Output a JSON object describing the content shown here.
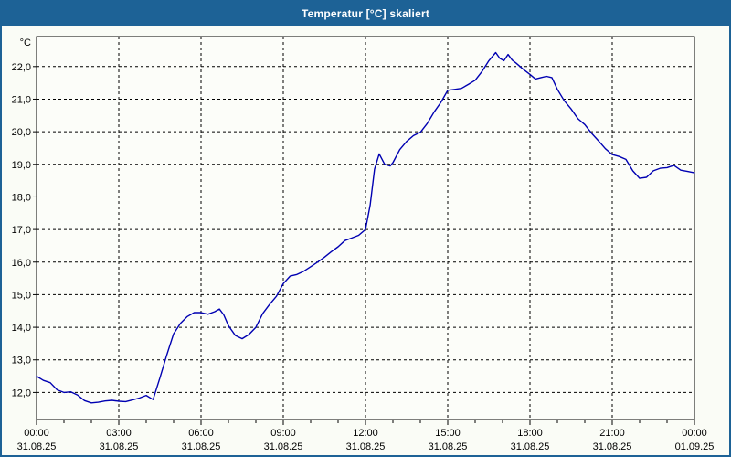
{
  "window": {
    "title": "Temperatur [°C] skaliert"
  },
  "colors": {
    "titlebar_blue": "#1d6296",
    "page_background": "#fafcf6",
    "plot_background": "#fcfdf9",
    "grid_black": "#000000",
    "series_blue": "#0000b2"
  },
  "chart_data": {
    "type": "line",
    "title": "Temperatur [°C] skaliert",
    "y_unit_label": "°C",
    "x_range_hours": [
      0,
      24
    ],
    "y_range": [
      11.17,
      22.92
    ],
    "grid": "dotted",
    "legend_position": "none",
    "y_ticks": [
      {
        "value": 12,
        "label": "12,0"
      },
      {
        "value": 13,
        "label": "13,0"
      },
      {
        "value": 14,
        "label": "14,0"
      },
      {
        "value": 15,
        "label": "15,0"
      },
      {
        "value": 16,
        "label": "16,0"
      },
      {
        "value": 17,
        "label": "17,0"
      },
      {
        "value": 18,
        "label": "18,0"
      },
      {
        "value": 19,
        "label": "19,0"
      },
      {
        "value": 20,
        "label": "20,0"
      },
      {
        "value": 21,
        "label": "21,0"
      },
      {
        "value": 22,
        "label": "22,0"
      }
    ],
    "x_major_ticks": [
      {
        "hour": 0,
        "time": "00:00",
        "date": "31.08.25"
      },
      {
        "hour": 3,
        "time": "03:00",
        "date": "31.08.25"
      },
      {
        "hour": 6,
        "time": "06:00",
        "date": "31.08.25"
      },
      {
        "hour": 9,
        "time": "09:00",
        "date": "31.08.25"
      },
      {
        "hour": 12,
        "time": "12:00",
        "date": "31.08.25"
      },
      {
        "hour": 15,
        "time": "15:00",
        "date": "31.08.25"
      },
      {
        "hour": 18,
        "time": "18:00",
        "date": "31.08.25"
      },
      {
        "hour": 21,
        "time": "21:00",
        "date": "31.08.25"
      },
      {
        "hour": 24,
        "time": "00:00",
        "date": "01.09.25"
      }
    ],
    "x_minor_tick_every_hours": 1,
    "series": [
      {
        "name": "Temperatur",
        "color": "#0000b2",
        "x_hours": [
          0,
          0.25,
          0.5,
          0.75,
          1,
          1.25,
          1.5,
          1.75,
          2,
          2.25,
          2.5,
          2.75,
          3,
          3.25,
          3.5,
          3.75,
          4,
          4.25,
          4.5,
          4.75,
          5,
          5.25,
          5.5,
          5.75,
          6,
          6.25,
          6.5,
          6.67,
          6.83,
          7,
          7.25,
          7.5,
          7.75,
          8,
          8.25,
          8.5,
          8.75,
          9,
          9.25,
          9.5,
          9.75,
          10,
          10.25,
          10.5,
          10.75,
          11,
          11.25,
          11.5,
          11.75,
          12,
          12.17,
          12.33,
          12.5,
          12.7,
          12.9,
          13,
          13.25,
          13.5,
          13.75,
          14,
          14.25,
          14.5,
          14.75,
          15,
          15.25,
          15.5,
          15.75,
          16,
          16.25,
          16.5,
          16.75,
          16.9,
          17.05,
          17.2,
          17.35,
          17.5,
          17.75,
          18,
          18.2,
          18.4,
          18.6,
          18.8,
          19,
          19.25,
          19.5,
          19.75,
          20,
          20.25,
          20.5,
          20.75,
          21,
          21.25,
          21.5,
          21.75,
          22,
          22.25,
          22.5,
          22.75,
          23,
          23.25,
          23.5,
          23.75,
          24
        ],
        "values": [
          12.5,
          12.37,
          12.3,
          12.08,
          12.0,
          12.02,
          11.92,
          11.75,
          11.68,
          11.7,
          11.74,
          11.76,
          11.73,
          11.72,
          11.77,
          11.83,
          11.91,
          11.78,
          12.45,
          13.15,
          13.8,
          14.12,
          14.33,
          14.45,
          14.45,
          14.4,
          14.48,
          14.56,
          14.38,
          14.05,
          13.75,
          13.65,
          13.78,
          14.0,
          14.42,
          14.7,
          14.95,
          15.34,
          15.57,
          15.62,
          15.72,
          15.86,
          16.0,
          16.15,
          16.32,
          16.47,
          16.66,
          16.74,
          16.82,
          17.0,
          17.75,
          18.85,
          19.32,
          19.0,
          18.95,
          19.05,
          19.45,
          19.7,
          19.88,
          19.98,
          20.25,
          20.6,
          20.9,
          21.27,
          21.3,
          21.33,
          21.45,
          21.58,
          21.85,
          22.18,
          22.43,
          22.25,
          22.18,
          22.37,
          22.2,
          22.1,
          21.92,
          21.76,
          21.62,
          21.66,
          21.7,
          21.66,
          21.3,
          20.95,
          20.7,
          20.4,
          20.22,
          19.95,
          19.72,
          19.48,
          19.3,
          19.24,
          19.15,
          18.8,
          18.57,
          18.6,
          18.8,
          18.88,
          18.9,
          18.97,
          18.82,
          18.78,
          18.74
        ]
      }
    ]
  }
}
